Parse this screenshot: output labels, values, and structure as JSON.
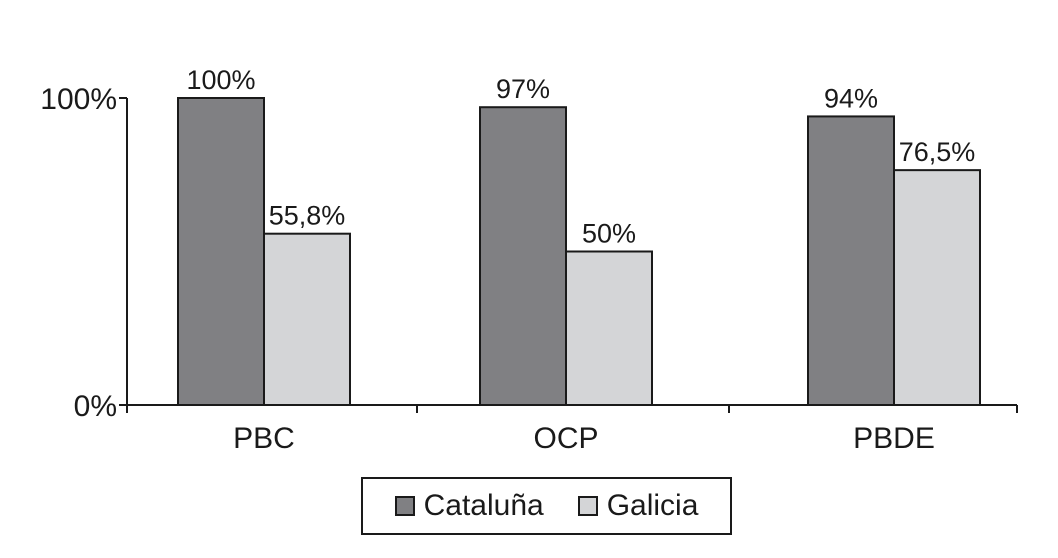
{
  "colors": {
    "cataluna": "#808083",
    "galicia": "#d4d5d7",
    "outline": "#1a1a1a"
  },
  "chart_data": {
    "type": "bar",
    "categories": [
      "PBC",
      "OCP",
      "PBDE"
    ],
    "series": [
      {
        "name": "Cataluña",
        "values": [
          100,
          97,
          94
        ],
        "labels": [
          "100%",
          "97%",
          "94%"
        ]
      },
      {
        "name": "Galicia",
        "values": [
          55.8,
          50,
          76.5
        ],
        "labels": [
          "55,8%",
          "50%",
          "76,5%"
        ]
      }
    ],
    "ylim": [
      0,
      100
    ],
    "yticks": [
      "0%",
      "100%"
    ],
    "grid": false,
    "legend": "bottom"
  }
}
